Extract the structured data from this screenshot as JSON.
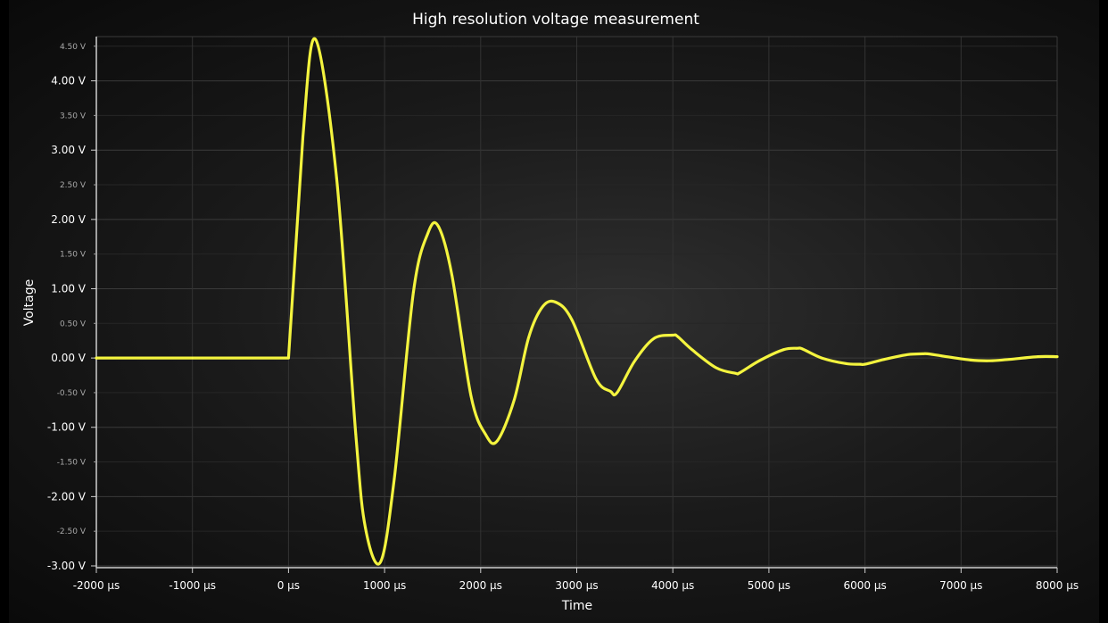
{
  "chart_data": {
    "type": "line",
    "title": "High resolution voltage measurement",
    "xlabel": "Time",
    "ylabel": "Voltage",
    "xlim": [
      -2000,
      8000
    ],
    "ylim": [
      -3.0,
      4.6
    ],
    "x_unit": "µs",
    "y_unit": "V",
    "grid": true,
    "x_ticks": [
      {
        "value": -2000,
        "label": "-2000 µs"
      },
      {
        "value": -1000,
        "label": "-1000 µs"
      },
      {
        "value": 0,
        "label": "0 µs"
      },
      {
        "value": 1000,
        "label": "1000 µs"
      },
      {
        "value": 2000,
        "label": "2000 µs"
      },
      {
        "value": 3000,
        "label": "3000 µs"
      },
      {
        "value": 4000,
        "label": "4000 µs"
      },
      {
        "value": 5000,
        "label": "5000 µs"
      },
      {
        "value": 6000,
        "label": "6000 µs"
      },
      {
        "value": 7000,
        "label": "7000 µs"
      },
      {
        "value": 8000,
        "label": "8000 µs"
      }
    ],
    "y_ticks_major": [
      {
        "value": 4.0,
        "label": "4.00 V"
      },
      {
        "value": 3.0,
        "label": "3.00 V"
      },
      {
        "value": 2.0,
        "label": "2.00 V"
      },
      {
        "value": 1.0,
        "label": "1.00 V"
      },
      {
        "value": 0.0,
        "label": "0.00 V"
      },
      {
        "value": -1.0,
        "label": "-1.00 V"
      },
      {
        "value": -2.0,
        "label": "-2.00 V"
      },
      {
        "value": -3.0,
        "label": "-3.00 V"
      }
    ],
    "y_ticks_minor": [
      {
        "value": 4.5,
        "label": "4.50 V"
      },
      {
        "value": 3.5,
        "label": "3.50 V"
      },
      {
        "value": 2.5,
        "label": "2.50 V"
      },
      {
        "value": 1.5,
        "label": "1.50 V"
      },
      {
        "value": 0.5,
        "label": "0.50 V"
      },
      {
        "value": -0.5,
        "label": "-0.50 V"
      },
      {
        "value": -1.5,
        "label": "-1.50 V"
      },
      {
        "value": -2.5,
        "label": "-2.50 V"
      }
    ],
    "series": [
      {
        "color": "#ffff40",
        "x": [
          -2000,
          -1000,
          -1,
          0,
          150,
          280,
          500,
          700,
          800,
          955,
          1100,
          1300,
          1450,
          1560,
          1700,
          1900,
          2050,
          2170,
          2350,
          2500,
          2650,
          2790,
          2950,
          3200,
          3350,
          3420,
          3600,
          3800,
          4000,
          4050,
          4200,
          4450,
          4650,
          4700,
          4900,
          5150,
          5300,
          5350,
          5550,
          5800,
          5950,
          6000,
          6200,
          6450,
          6600,
          6650,
          6800,
          7100,
          7300,
          7500,
          7800,
          8000
        ],
        "y": [
          0.0,
          0.0,
          0.0,
          0.0,
          3.2,
          4.6,
          2.6,
          -1.1,
          -2.45,
          -2.95,
          -1.75,
          0.95,
          1.8,
          1.9,
          1.2,
          -0.55,
          -1.1,
          -1.2,
          -0.6,
          0.3,
          0.75,
          0.8,
          0.55,
          -0.3,
          -0.48,
          -0.5,
          -0.05,
          0.28,
          0.33,
          0.31,
          0.12,
          -0.14,
          -0.22,
          -0.21,
          -0.04,
          0.12,
          0.14,
          0.13,
          0.0,
          -0.08,
          -0.09,
          -0.09,
          -0.02,
          0.05,
          0.06,
          0.06,
          0.03,
          -0.03,
          -0.04,
          -0.02,
          0.02,
          0.02
        ]
      }
    ]
  }
}
